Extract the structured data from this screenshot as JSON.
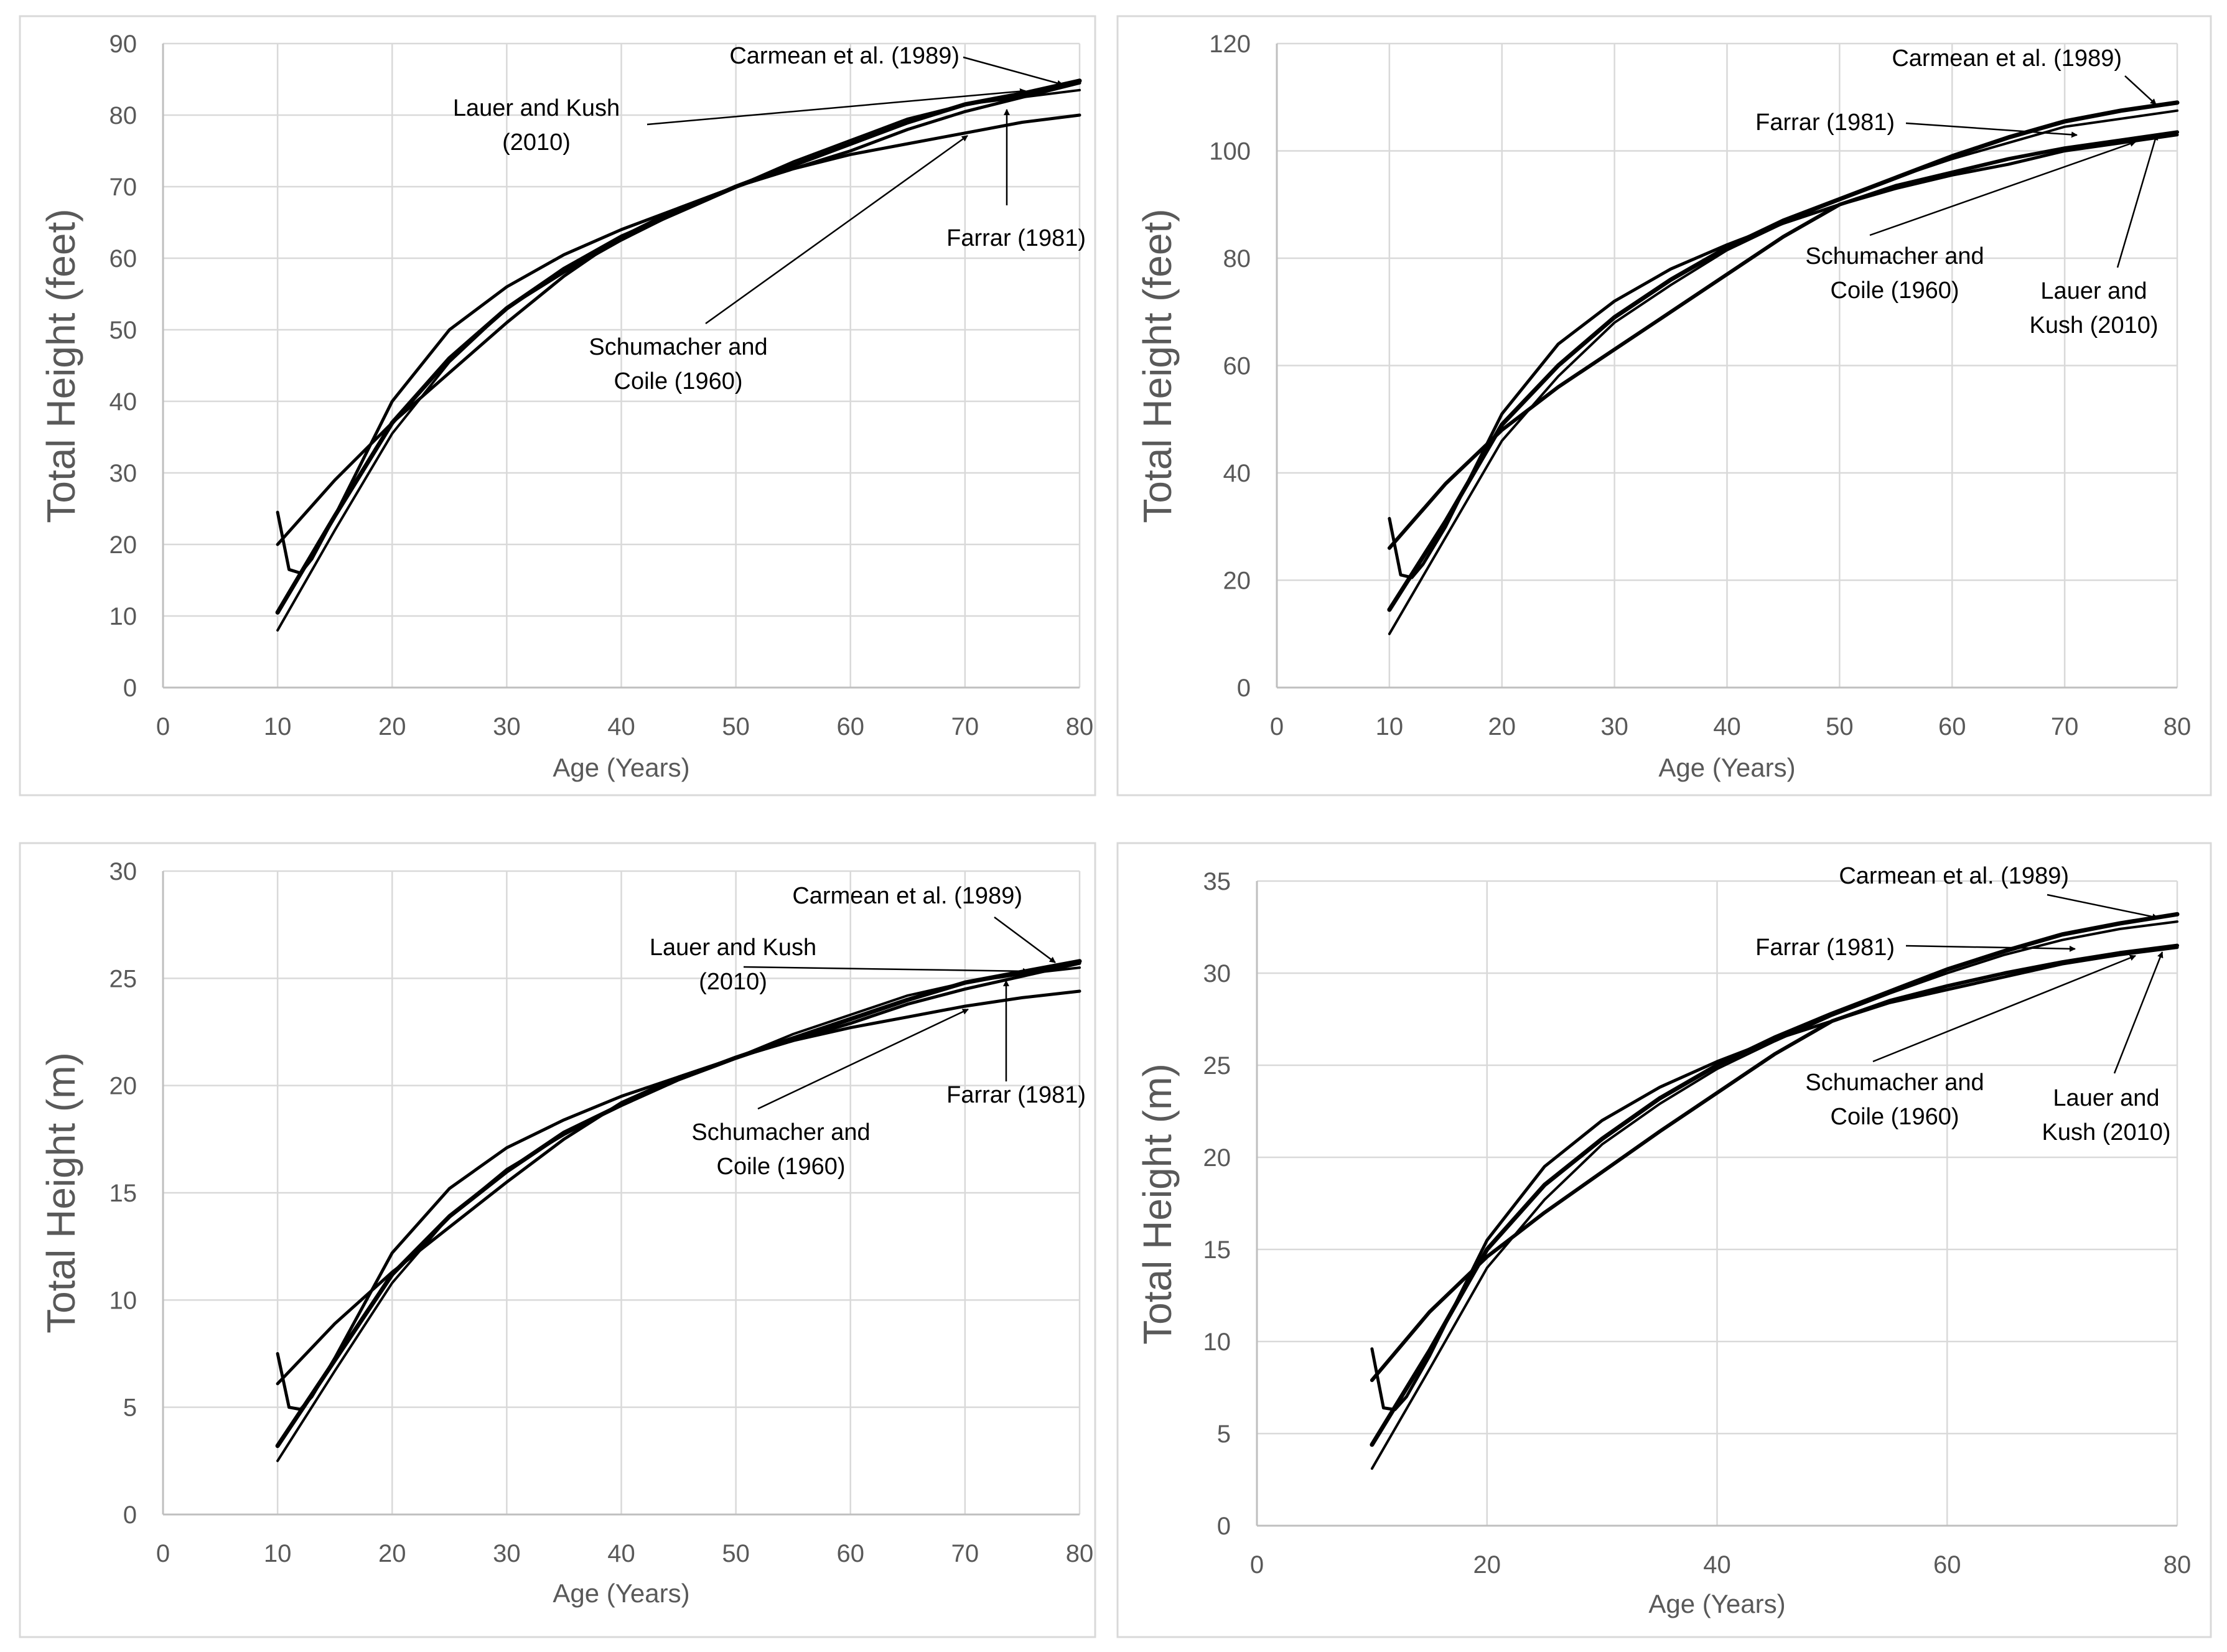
{
  "chart_data": [
    {
      "type": "line",
      "id": "feet-1",
      "ylabel": "Total Height  (feet)",
      "xlabel": "Age (Years)",
      "xlim": [
        0,
        80
      ],
      "ylim": [
        0,
        90
      ],
      "xticks": [
        0,
        10,
        20,
        30,
        40,
        50,
        60,
        70,
        80
      ],
      "yticks": [
        0,
        10,
        20,
        30,
        40,
        50,
        60,
        70,
        80,
        90
      ],
      "grid": true,
      "series": [
        {
          "name": "Carmean et al. (1989)",
          "x": [
            10,
            15,
            20,
            25,
            30,
            35,
            40,
            45,
            50,
            55,
            60,
            65,
            70,
            75,
            80
          ],
          "y": [
            10.5,
            24,
            37,
            46,
            53,
            58.5,
            63,
            66.5,
            70,
            73,
            76,
            79,
            81.5,
            83,
            84.8
          ]
        },
        {
          "name": "Lauer and Kush (2010)",
          "x": [
            10,
            11,
            12,
            13,
            15,
            20,
            25,
            30,
            35,
            40,
            45,
            50,
            55,
            60,
            65,
            70,
            75,
            80
          ],
          "y": [
            24.5,
            16.5,
            16,
            18,
            24,
            40,
            50,
            56,
            60.5,
            64,
            67,
            70,
            72.5,
            75,
            78,
            80.5,
            82.5,
            84.5
          ]
        },
        {
          "name": "Farrar (1981)",
          "x": [
            10,
            15,
            20,
            25,
            30,
            35,
            40,
            45,
            50,
            55,
            60,
            65,
            70,
            75,
            80
          ],
          "y": [
            8,
            22,
            35.5,
            45.5,
            53,
            58,
            62.5,
            66.5,
            70,
            73.5,
            76.5,
            79.5,
            81.5,
            82.5,
            83.5
          ]
        },
        {
          "name": "Schumacher and Coile (1960)",
          "x": [
            10,
            15,
            20,
            25,
            30,
            35,
            40,
            45,
            50,
            55,
            60,
            65,
            70,
            75,
            80
          ],
          "y": [
            20,
            29,
            37,
            44,
            51,
            57.5,
            63,
            67,
            70,
            72.5,
            74.5,
            76,
            77.5,
            79,
            80
          ]
        }
      ],
      "annotations": [
        {
          "lines": [
            "Carmean et al. (1989)"
          ]
        },
        {
          "lines": [
            "Lauer and Kush",
            "(2010)"
          ]
        },
        {
          "lines": [
            "Farrar (1981)"
          ]
        },
        {
          "lines": [
            "Schumacher and",
            "Coile (1960)"
          ]
        }
      ]
    },
    {
      "type": "line",
      "id": "feet-2",
      "ylabel": "Total Height  (feet)",
      "xlabel": "Age (Years)",
      "xlim": [
        0,
        80
      ],
      "ylim": [
        0,
        120
      ],
      "xticks": [
        0,
        10,
        20,
        30,
        40,
        50,
        60,
        70,
        80
      ],
      "yticks": [
        0,
        20,
        40,
        60,
        80,
        100,
        120
      ],
      "grid": true,
      "series": [
        {
          "name": "Carmean et al. (1989)",
          "x": [
            10,
            15,
            20,
            25,
            30,
            35,
            40,
            45,
            50,
            55,
            60,
            65,
            70,
            75,
            80
          ],
          "y": [
            14.5,
            31,
            49,
            60,
            69,
            76,
            82,
            87,
            91,
            95,
            99,
            102.5,
            105.5,
            107.5,
            109
          ]
        },
        {
          "name": "Farrar (1981)",
          "x": [
            10,
            15,
            20,
            25,
            30,
            35,
            40,
            45,
            50,
            55,
            60,
            65,
            70,
            75,
            80
          ],
          "y": [
            10,
            28,
            46,
            58,
            68,
            75,
            81.5,
            86.5,
            91,
            95,
            98.5,
            101.5,
            104.5,
            106,
            107.5
          ]
        },
        {
          "name": "Schumacher and Coile (1960)",
          "x": [
            10,
            15,
            20,
            25,
            30,
            35,
            40,
            45,
            50,
            55,
            60,
            65,
            70,
            75,
            80
          ],
          "y": [
            26,
            38,
            48,
            56,
            63,
            70,
            77,
            84,
            90,
            93.5,
            96,
            98.5,
            100.5,
            102,
            103.5
          ]
        },
        {
          "name": "Lauer and Kush (2010)",
          "x": [
            10,
            11,
            12,
            13,
            15,
            20,
            25,
            30,
            35,
            40,
            45,
            50,
            55,
            60,
            65,
            70,
            75,
            80
          ],
          "y": [
            31.5,
            21,
            20.5,
            23,
            30,
            51,
            64,
            72,
            78,
            82.5,
            86.5,
            90,
            93,
            95.5,
            97.5,
            100,
            101.5,
            103
          ]
        }
      ],
      "annotations": [
        {
          "lines": [
            "Carmean et al. (1989)"
          ]
        },
        {
          "lines": [
            "Farrar (1981)"
          ]
        },
        {
          "lines": [
            "Schumacher and",
            "Coile (1960)"
          ]
        },
        {
          "lines": [
            "Lauer and",
            "Kush (2010)"
          ]
        }
      ]
    },
    {
      "type": "line",
      "id": "m-1",
      "ylabel": "Total Height  (m)",
      "xlabel": "Age (Years)",
      "xlim": [
        0,
        80
      ],
      "ylim": [
        0,
        30
      ],
      "xticks": [
        0,
        10,
        20,
        30,
        40,
        50,
        60,
        70,
        80
      ],
      "yticks": [
        0,
        5,
        10,
        15,
        20,
        25,
        30
      ],
      "grid": true,
      "series": [
        {
          "name": "Carmean et al. (1989)",
          "x": [
            10,
            15,
            20,
            25,
            30,
            35,
            40,
            45,
            50,
            55,
            60,
            65,
            70,
            75,
            80
          ],
          "y": [
            3.2,
            7.2,
            11.2,
            13.9,
            16,
            17.8,
            19.1,
            20.3,
            21.3,
            22.2,
            23.1,
            24,
            24.8,
            25.3,
            25.8
          ]
        },
        {
          "name": "Lauer and Kush (2010)",
          "x": [
            10,
            11,
            12,
            13,
            15,
            20,
            25,
            30,
            35,
            40,
            45,
            50,
            55,
            60,
            65,
            70,
            75,
            80
          ],
          "y": [
            7.5,
            5,
            4.9,
            5.5,
            7.3,
            12.2,
            15.2,
            17.1,
            18.4,
            19.5,
            20.4,
            21.3,
            22.1,
            22.9,
            23.8,
            24.5,
            25.1,
            25.7
          ]
        },
        {
          "name": "Farrar (1981)",
          "x": [
            10,
            15,
            20,
            25,
            30,
            35,
            40,
            45,
            50,
            55,
            60,
            65,
            70,
            75,
            80
          ],
          "y": [
            2.5,
            6.7,
            10.8,
            13.9,
            16.1,
            17.7,
            19.1,
            20.3,
            21.3,
            22.4,
            23.3,
            24.2,
            24.8,
            25.2,
            25.5
          ]
        },
        {
          "name": "Schumacher and Coile (1960)",
          "x": [
            10,
            15,
            20,
            25,
            30,
            35,
            40,
            45,
            50,
            55,
            60,
            65,
            70,
            75,
            80
          ],
          "y": [
            6.1,
            8.9,
            11.3,
            13.4,
            15.5,
            17.5,
            19.2,
            20.4,
            21.3,
            22.1,
            22.7,
            23.2,
            23.7,
            24.1,
            24.4
          ]
        }
      ],
      "annotations": [
        {
          "lines": [
            "Carmean et al. (1989)"
          ]
        },
        {
          "lines": [
            "Lauer and Kush",
            "(2010)"
          ]
        },
        {
          "lines": [
            "Farrar (1981)"
          ]
        },
        {
          "lines": [
            "Schumacher and",
            "Coile (1960)"
          ]
        }
      ]
    },
    {
      "type": "line",
      "id": "m-2",
      "ylabel": "Total Height  (m)",
      "xlabel": "Age (Years)",
      "xlim": [
        0,
        80
      ],
      "ylim": [
        0,
        35
      ],
      "xticks": [
        0,
        20,
        40,
        60,
        80
      ],
      "yticks": [
        0,
        5,
        10,
        15,
        20,
        25,
        30,
        35
      ],
      "grid": true,
      "series": [
        {
          "name": "Carmean et al. (1989)",
          "x": [
            10,
            15,
            20,
            25,
            30,
            35,
            40,
            45,
            50,
            55,
            60,
            65,
            70,
            75,
            80
          ],
          "y": [
            4.4,
            9.5,
            15,
            18.5,
            21,
            23.2,
            25,
            26.5,
            27.8,
            29,
            30.2,
            31.2,
            32.1,
            32.7,
            33.2
          ]
        },
        {
          "name": "Farrar (1981)",
          "x": [
            10,
            15,
            20,
            25,
            30,
            35,
            40,
            45,
            50,
            55,
            60,
            65,
            70,
            75,
            80
          ],
          "y": [
            3.1,
            8.5,
            14,
            17.7,
            20.7,
            22.9,
            24.8,
            26.3,
            27.7,
            28.9,
            30,
            31,
            31.8,
            32.4,
            32.8
          ]
        },
        {
          "name": "Schumacher and Coile (1960)",
          "x": [
            10,
            15,
            20,
            25,
            30,
            35,
            40,
            45,
            50,
            55,
            60,
            65,
            70,
            75,
            80
          ],
          "y": [
            7.9,
            11.6,
            14.6,
            17,
            19.2,
            21.4,
            23.5,
            25.6,
            27.4,
            28.5,
            29.3,
            30,
            30.6,
            31.1,
            31.5
          ]
        },
        {
          "name": "Lauer and Kush (2010)",
          "x": [
            10,
            11,
            12,
            13,
            15,
            20,
            25,
            30,
            35,
            40,
            45,
            50,
            55,
            60,
            65,
            70,
            75,
            80
          ],
          "y": [
            9.6,
            6.4,
            6.3,
            7,
            9.2,
            15.5,
            19.5,
            22,
            23.8,
            25.2,
            26.4,
            27.4,
            28.4,
            29.1,
            29.8,
            30.5,
            31,
            31.4
          ]
        }
      ],
      "annotations": [
        {
          "lines": [
            "Carmean et al. (1989)"
          ]
        },
        {
          "lines": [
            "Farrar (1981)"
          ]
        },
        {
          "lines": [
            "Schumacher and",
            "Coile (1960)"
          ]
        },
        {
          "lines": [
            "Lauer and",
            "Kush (2010)"
          ]
        }
      ]
    }
  ]
}
